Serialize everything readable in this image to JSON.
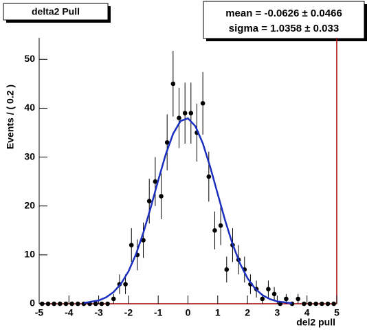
{
  "chart_data": {
    "type": "scatter",
    "title": "delta2 Pull",
    "stats": [
      "mean = -0.0626 ± 0.0466",
      "sigma = 1.0358 ± 0.033"
    ],
    "x_label": "del2 pull",
    "y_label": "Events / ( 0.2 )",
    "xlim": [
      -5,
      5
    ],
    "ylim": [
      0,
      54.4
    ],
    "xticks": [
      -5,
      -4,
      -3,
      -2,
      -1,
      0,
      1,
      2,
      3,
      4,
      5
    ],
    "yticks": [
      0,
      10,
      20,
      30,
      40,
      50
    ],
    "series": [
      {
        "type": "scatter",
        "color": "#000000",
        "x": [
          -4.9,
          -4.7,
          -4.5,
          -4.3,
          -4.1,
          -3.9,
          -3.7,
          -3.5,
          -3.3,
          -3.1,
          -2.9,
          -2.7,
          -2.5,
          -2.3,
          -2.1,
          -1.9,
          -1.7,
          -1.5,
          -1.3,
          -1.1,
          -0.9,
          -0.7,
          -0.5,
          -0.3,
          -0.1,
          0.1,
          0.3,
          0.5,
          0.7,
          0.9,
          1.1,
          1.3,
          1.5,
          1.7,
          1.9,
          2.1,
          2.3,
          2.5,
          2.7,
          2.9,
          3.1,
          3.3,
          3.5,
          3.7,
          3.9,
          4.1,
          4.3,
          4.5,
          4.7,
          4.9
        ],
        "values": [
          0,
          0,
          0,
          0,
          0,
          0,
          0,
          0,
          0,
          0,
          0,
          0,
          1,
          4,
          4,
          12,
          10,
          13,
          21,
          25,
          22,
          33,
          45,
          38,
          39,
          39,
          35,
          41,
          26,
          15,
          16,
          7,
          12,
          9,
          7,
          4,
          3,
          1,
          3,
          2,
          0,
          1,
          0,
          1,
          0,
          0,
          0,
          0,
          0,
          0
        ],
        "errors": [
          0,
          0,
          0,
          0,
          0,
          0,
          0,
          0,
          0,
          0,
          0,
          0,
          1,
          2,
          2,
          3.46,
          3.16,
          3.61,
          4.58,
          5,
          4.69,
          5.74,
          6.71,
          6.16,
          6.24,
          6.24,
          5.92,
          6.4,
          5.1,
          3.87,
          4,
          2.65,
          3.46,
          3,
          2.65,
          2,
          1.73,
          1,
          1.73,
          1.41,
          0,
          1,
          0,
          1,
          0,
          0,
          0,
          0,
          0,
          0
        ]
      },
      {
        "type": "line",
        "color": "#1a2fc0",
        "x": [
          -3.5,
          -3,
          -2.75,
          -2.5,
          -2.25,
          -2,
          -1.75,
          -1.5,
          -1.25,
          -1,
          -0.75,
          -0.5,
          -0.25,
          0,
          0.25,
          0.5,
          0.75,
          1,
          1.25,
          1.5,
          1.75,
          2,
          2.25,
          2.5,
          2.75,
          3,
          3.5
        ],
        "values": [
          0.16,
          0.68,
          1.31,
          2.39,
          4.09,
          6.61,
          10.09,
          14.52,
          19.71,
          25.24,
          30.5,
          34.77,
          37.38,
          37.93,
          36.31,
          32.79,
          27.93,
          22.45,
          17.02,
          12.18,
          8.22,
          5.24,
          3.14,
          1.78,
          0.95,
          0.48,
          0.1
        ]
      }
    ]
  }
}
